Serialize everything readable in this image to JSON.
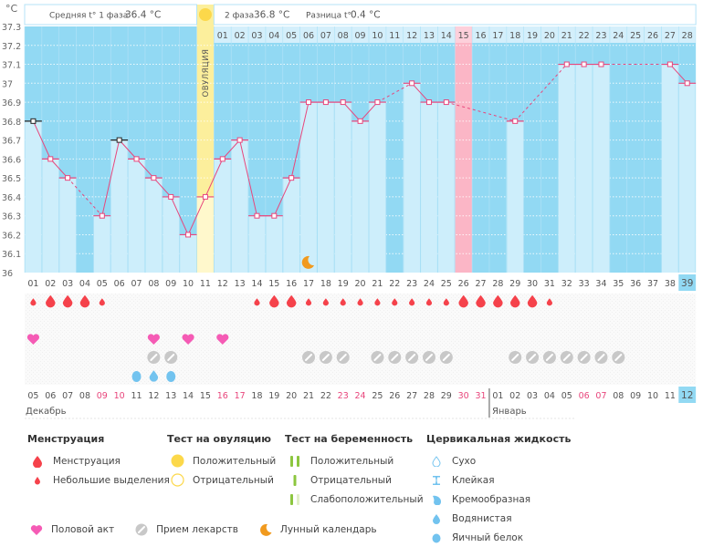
{
  "header": {
    "unit_label": "°C",
    "phase1_label": "Средняя t° 1 фаза",
    "phase1_value": "36.4 °C",
    "phase2_label": "2 фаза",
    "phase2_value": "36.8 °C",
    "diff_label": "Разница t°",
    "diff_value": "0.4 °C",
    "ovulation_label": "ОВУЛЯЦИЯ"
  },
  "colors": {
    "bg_blue": "#92d9f3",
    "bar_light": "#cdeefb",
    "ovulation_yellow": "#fcef9c",
    "ovulation_bar": "#fff8cc",
    "pink_day": "#fbb6c6",
    "line": "#e8467c",
    "menstruation": "#f5424b",
    "heart": "#f55bb5",
    "pill": "#c8c8c8",
    "cervical": "#72c3ef",
    "weekend": "#e8467c",
    "moon": "#f19a1e",
    "sun": "#fcd84a",
    "preg_green": "#8cc63f"
  },
  "chart_data": {
    "type": "bar+line",
    "title": "Базальная температура",
    "ylabel": "°C",
    "ylim": [
      36.0,
      37.3
    ],
    "yticks": [
      "36",
      "36.1",
      "36.2",
      "36.3",
      "36.4",
      "36.5",
      "36.6",
      "36.7",
      "36.8",
      "36.9",
      "37",
      "37.1",
      "37.2",
      "37.3"
    ],
    "ovulation_day": 11,
    "pink_day": 26,
    "current_day": 39,
    "cycle_days": [
      "01",
      "02",
      "03",
      "04",
      "05",
      "06",
      "07",
      "08",
      "09",
      "10",
      "11",
      "12",
      "13",
      "14",
      "15",
      "16",
      "17",
      "18",
      "19",
      "20",
      "21",
      "22",
      "23",
      "24",
      "25",
      "26",
      "27",
      "28",
      "29",
      "30",
      "31",
      "32",
      "33",
      "34",
      "35",
      "36",
      "37",
      "38",
      "39"
    ],
    "post_ovulation_days": [
      "01",
      "02",
      "03",
      "04",
      "05",
      "06",
      "07",
      "08",
      "09",
      "10",
      "11",
      "12",
      "13",
      "14",
      "15",
      "16",
      "17",
      "18",
      "19",
      "20",
      "21",
      "22",
      "23",
      "24",
      "25",
      "26",
      "27",
      "28"
    ],
    "temperatures": [
      36.8,
      36.6,
      36.5,
      null,
      36.3,
      36.7,
      36.6,
      36.5,
      36.4,
      36.2,
      36.4,
      36.6,
      36.7,
      36.3,
      36.3,
      36.5,
      36.9,
      36.9,
      36.9,
      36.8,
      36.9,
      null,
      37.0,
      36.9,
      36.9,
      null,
      null,
      null,
      36.8,
      null,
      null,
      37.1,
      37.1,
      37.1,
      null,
      null,
      null,
      37.1,
      37.0
    ],
    "black_markers": [
      1,
      6
    ],
    "calendar_dates": [
      "05",
      "06",
      "07",
      "08",
      "09",
      "10",
      "11",
      "12",
      "13",
      "14",
      "15",
      "16",
      "17",
      "18",
      "19",
      "20",
      "21",
      "22",
      "23",
      "24",
      "25",
      "26",
      "27",
      "28",
      "29",
      "30",
      "31",
      "01",
      "02",
      "03",
      "04",
      "05",
      "06",
      "07",
      "08",
      "09",
      "10",
      "11",
      "12"
    ],
    "weekend_dates_idx": [
      5,
      6,
      12,
      13,
      19,
      20,
      26,
      27,
      33,
      34
    ],
    "months": [
      {
        "label": "Декабрь",
        "start_day": 1
      },
      {
        "label": "Январь",
        "start_day": 28
      }
    ],
    "menstruation": {
      "heavy": [
        2,
        3,
        4,
        15,
        16,
        26,
        27,
        28,
        29,
        30
      ],
      "light": [
        1,
        5,
        14,
        17,
        18,
        19,
        20,
        21,
        22,
        23,
        24,
        25,
        31
      ]
    },
    "intercourse": [
      1,
      8,
      10,
      12
    ],
    "medication": [
      8,
      9,
      17,
      18,
      19,
      21,
      22,
      23,
      24,
      25,
      29,
      30,
      31,
      32,
      33,
      34,
      35
    ],
    "cervical": {
      "egg_white": [
        7,
        9
      ],
      "watery": [
        8
      ]
    },
    "lunar": [
      17
    ]
  },
  "legend": {
    "menstruation": {
      "title": "Менструация",
      "items": [
        "Менструация",
        "Небольшие выделения"
      ]
    },
    "ovulation_test": {
      "title": "Тест на овуляцию",
      "items": [
        "Положительный",
        "Отрицательный"
      ]
    },
    "pregnancy_test": {
      "title": "Тест на беременность",
      "items": [
        "Положительный",
        "Отрицательный",
        "Слабоположительный"
      ]
    },
    "cervical": {
      "title": "Цервикальная жидкость",
      "items": [
        "Сухо",
        "Клейкая",
        "Кремообразная",
        "Водянистая",
        "Яичный белок"
      ]
    },
    "bottom": [
      "Половой акт",
      "Прием лекарств",
      "Лунный календарь"
    ]
  }
}
